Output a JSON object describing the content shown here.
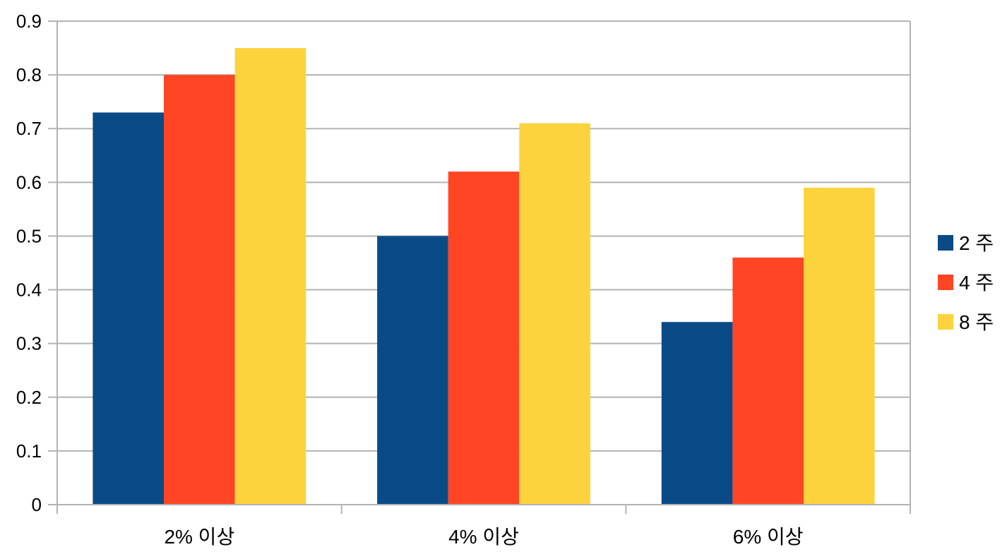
{
  "chart_data": {
    "type": "bar",
    "categories": [
      "2% 이상",
      "4% 이상",
      "6% 이상"
    ],
    "series": [
      {
        "name": "2 주",
        "color": "#0a4a87",
        "values": [
          0.73,
          0.5,
          0.34
        ]
      },
      {
        "name": "4 주",
        "color": "#ff4524",
        "values": [
          0.8,
          0.62,
          0.46
        ]
      },
      {
        "name": "8 주",
        "color": "#fdd33d",
        "values": [
          0.85,
          0.71,
          0.59
        ]
      }
    ],
    "title": "",
    "xlabel": "",
    "ylabel": "",
    "ylim": [
      0,
      0.9
    ],
    "yticks": [
      "0",
      "0.1",
      "0.2",
      "0.3",
      "0.4",
      "0.5",
      "0.6",
      "0.7",
      "0.8",
      "0.9"
    ],
    "grid": true,
    "legend_position": "right",
    "colors": {
      "grid": "#b3b3b3",
      "axis": "#b3b3b3"
    }
  }
}
